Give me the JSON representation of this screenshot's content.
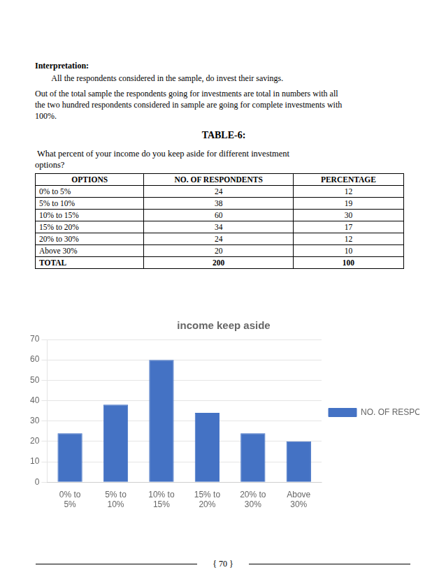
{
  "chart_data": {
    "type": "bar",
    "title": "income keep aside",
    "categories": [
      "0% to\n5%",
      "5% to\n10%",
      "10% to\n15%",
      "15% to\n20%",
      "20% to\n30%",
      "Above\n30%"
    ],
    "series": [
      {
        "name": "NO. OF RESPONDENTS",
        "color": "#4472C4",
        "values": [
          24,
          38,
          60,
          34,
          24,
          20
        ]
      }
    ],
    "ylim": [
      0,
      70
    ],
    "yticks": [
      0,
      10,
      20,
      30,
      40,
      50,
      60,
      70
    ],
    "grid": true,
    "legend": "right"
  },
  "page_text": {
    "interpretation_title": "Interpretation:",
    "interpretation_lines": [
      "        All the respondents considered in the sample, do invest their savings.",
      "Out of the total sample the respondents going for investments are total in numbers with all",
      "the two hundred respondents considered in sample are going for complete investments with",
      "100%."
    ],
    "table_title": "TABLE-6:",
    "table_question_lines": [
      " What percent of your income do you keep aside for different investment",
      "options?"
    ],
    "table_headers": [
      "OPTIONS",
      "NO. OF RESPONDENTS",
      "PERCENTAGE"
    ],
    "table_rows": [
      [
        "0% to 5%",
        "24",
        "12"
      ],
      [
        "5% to 10%",
        "38",
        "19"
      ],
      [
        "10% to 15%",
        "60",
        "30"
      ],
      [
        "15% to 20%",
        "34",
        "17"
      ],
      [
        "20% to 30%",
        "24",
        "12"
      ],
      [
        "Above 30%",
        "20",
        "10"
      ],
      [
        "TOTAL",
        "200",
        "100"
      ]
    ],
    "page_number": "{ 70 }"
  }
}
